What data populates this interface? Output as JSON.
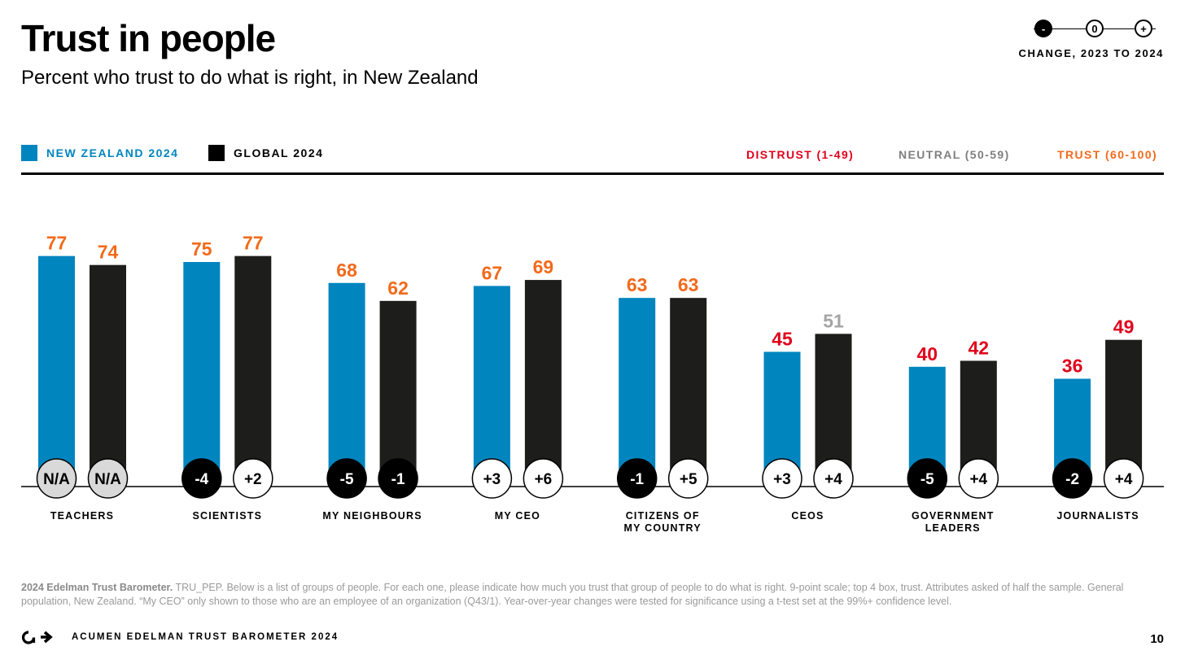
{
  "header": {
    "title": "Trust in people",
    "subtitle": "Percent who trust to do what is right, in New Zealand"
  },
  "change_key": {
    "negative": "-",
    "zero": "0",
    "positive": "+",
    "label": "CHANGE, 2023 TO 2024"
  },
  "legend": {
    "nz_label": "NEW ZEALAND 2024",
    "global_label": "GLOBAL 2024"
  },
  "scale": {
    "distrust": "DISTRUST (1-49)",
    "neutral": "NEUTRAL (50-59)",
    "trust": "TRUST (60-100)"
  },
  "colors": {
    "nz": "#0085BF",
    "global": "#1D1D1B",
    "distrust": "#E0001B",
    "neutral": "#A5A5A5",
    "trust": "#F26A1B",
    "na_fill": "#D9D9D9"
  },
  "chart_data": {
    "type": "bar",
    "ylim": [
      0,
      100
    ],
    "categories": [
      "TEACHERS",
      "SCIENTISTS",
      "MY NEIGHBOURS",
      "MY CEO",
      "CITIZENS OF MY COUNTRY",
      "CEOS",
      "GOVERNMENT LEADERS",
      "JOURNALISTS"
    ],
    "category_lines": [
      [
        "TEACHERS"
      ],
      [
        "SCIENTISTS"
      ],
      [
        "MY NEIGHBOURS"
      ],
      [
        "MY CEO"
      ],
      [
        "CITIZENS OF",
        "MY COUNTRY"
      ],
      [
        "CEOS"
      ],
      [
        "GOVERNMENT",
        "LEADERS"
      ],
      [
        "JOURNALISTS"
      ]
    ],
    "series": [
      {
        "name": "NEW ZEALAND 2024",
        "values": [
          77,
          75,
          68,
          67,
          63,
          45,
          40,
          36
        ],
        "change": [
          "N/A",
          "-4",
          "-5",
          "+3",
          "-1",
          "+3",
          "-5",
          "-2"
        ]
      },
      {
        "name": "GLOBAL 2024",
        "values": [
          74,
          77,
          62,
          69,
          63,
          51,
          42,
          49
        ],
        "change": [
          "N/A",
          "+2",
          "-1",
          "+6",
          "+5",
          "+4",
          "+4",
          "+4"
        ]
      }
    ]
  },
  "footnote": {
    "source": "2024 Edelman Trust Barometer.",
    "text": " TRU_PEP. Below is a list of groups of people. For each one, please indicate how much you trust that group of people to do what is right. 9-point scale; top 4 box, trust. Attributes asked of half the sample. General population, New Zealand. “My CEO” only shown to those who are an employee of an organization (Q43/1). Year-over-year changes were tested for significance using a t-test set at the 99%+ confidence level."
  },
  "footer": {
    "brand": "ACUMEN EDELMAN TRUST BAROMETER 2024",
    "page": "10"
  }
}
